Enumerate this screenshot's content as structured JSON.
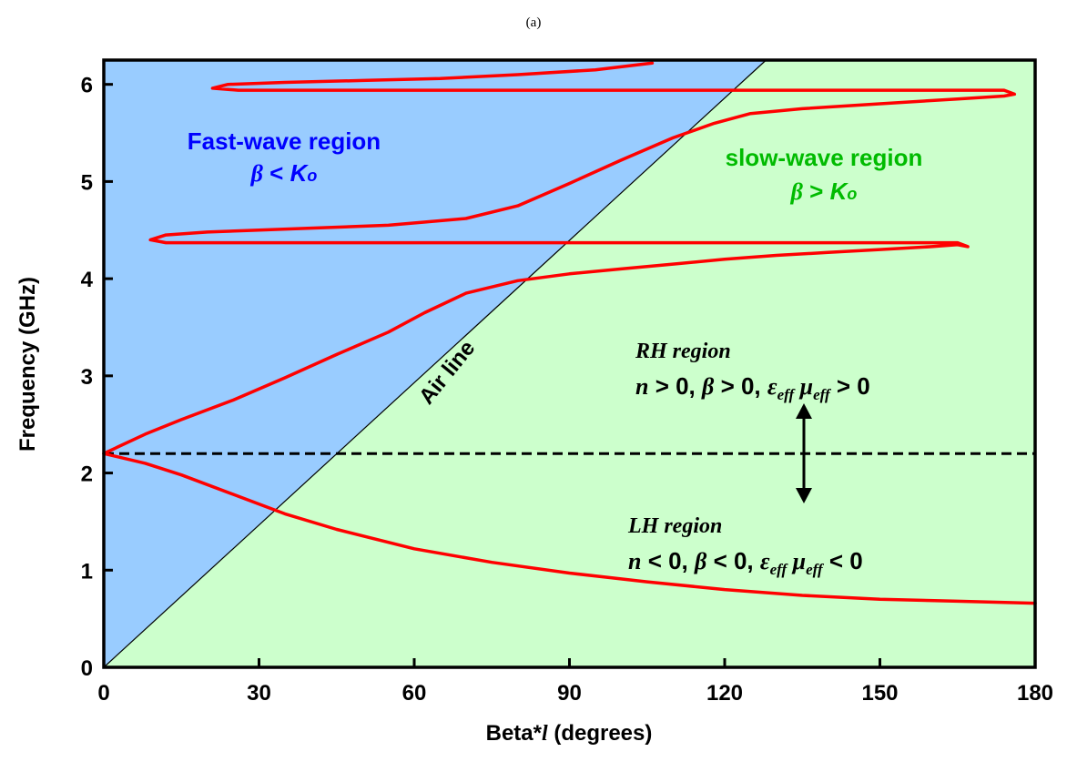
{
  "chart_data": {
    "type": "line",
    "panel_label": "(a)",
    "xlabel": {
      "main": "Beta*",
      "var": "l",
      "unit": "  (degrees)"
    },
    "ylabel": "Frequency  (GHz)",
    "xlim": [
      0,
      180
    ],
    "ylim": [
      0,
      6.25
    ],
    "xticks": [
      0,
      30,
      60,
      90,
      120,
      150,
      180
    ],
    "yticks": [
      0,
      1,
      2,
      3,
      4,
      5,
      6
    ],
    "grid": false,
    "colors": {
      "fast_region": "#99ccff",
      "slow_region": "#ccffcc",
      "dispersion": "#ff0000",
      "fast_text": "#0000ff",
      "slow_text": "#00bb00"
    },
    "regions": {
      "fast": {
        "title": "Fast-wave region",
        "cond_beta": "β",
        "cond_op": " < ",
        "cond_k": "K",
        "cond_sub": "o"
      },
      "slow": {
        "title": "slow-wave region",
        "cond_beta": "β",
        "cond_op": " > ",
        "cond_k": "K",
        "cond_sub": "o"
      }
    },
    "air_line": {
      "label": "Air line",
      "points": [
        [
          0,
          0
        ],
        [
          128,
          6.25
        ]
      ]
    },
    "transition_frequency": {
      "value": 2.2,
      "style": "dashed"
    },
    "annotations": {
      "rh": {
        "title": "RH region",
        "n": "n",
        "c1": " > 0, ",
        "beta": "β",
        "c2": " > 0, ",
        "eps": "ε",
        "eff1": "eff",
        "mu": " μ",
        "eff2": "eff",
        "c3": " > 0"
      },
      "lh": {
        "title": "LH region",
        "n": "n",
        "c1": " < 0, ",
        "beta": "β",
        "c2": " < 0, ",
        "eps": "ε",
        "eff1": "eff",
        "mu": " μ",
        "eff2": "eff",
        "c3": " < 0"
      }
    },
    "series": [
      {
        "points": [
          [
            0,
            2.2
          ],
          [
            8,
            2.1
          ],
          [
            15,
            1.98
          ],
          [
            25,
            1.78
          ],
          [
            35,
            1.58
          ],
          [
            45,
            1.42
          ],
          [
            60,
            1.22
          ],
          [
            75,
            1.08
          ],
          [
            90,
            0.97
          ],
          [
            105,
            0.88
          ],
          [
            120,
            0.8
          ],
          [
            135,
            0.74
          ],
          [
            150,
            0.7
          ],
          [
            165,
            0.68
          ],
          [
            180,
            0.66
          ]
        ]
      },
      {
        "points": [
          [
            0,
            2.2
          ],
          [
            8,
            2.4
          ],
          [
            15,
            2.55
          ],
          [
            25,
            2.75
          ],
          [
            35,
            2.98
          ],
          [
            45,
            3.22
          ],
          [
            55,
            3.45
          ],
          [
            62,
            3.65
          ],
          [
            70,
            3.85
          ],
          [
            80,
            3.98
          ],
          [
            90,
            4.05
          ],
          [
            100,
            4.1
          ],
          [
            110,
            4.15
          ],
          [
            120,
            4.2
          ],
          [
            130,
            4.24
          ],
          [
            140,
            4.27
          ],
          [
            150,
            4.3
          ],
          [
            160,
            4.33
          ],
          [
            165,
            4.35
          ],
          [
            167,
            4.33
          ],
          [
            165,
            4.37
          ],
          [
            140,
            4.37
          ],
          [
            110,
            4.37
          ],
          [
            80,
            4.37
          ],
          [
            50,
            4.37
          ],
          [
            20,
            4.37
          ],
          [
            12,
            4.37
          ],
          [
            9,
            4.4
          ],
          [
            12,
            4.45
          ],
          [
            20,
            4.48
          ],
          [
            30,
            4.5
          ],
          [
            40,
            4.52
          ],
          [
            55,
            4.55
          ],
          [
            70,
            4.62
          ],
          [
            80,
            4.75
          ],
          [
            90,
            4.98
          ],
          [
            100,
            5.22
          ],
          [
            110,
            5.45
          ],
          [
            118,
            5.6
          ],
          [
            125,
            5.7
          ],
          [
            135,
            5.75
          ],
          [
            150,
            5.8
          ],
          [
            165,
            5.85
          ],
          [
            174,
            5.88
          ],
          [
            176,
            5.9
          ],
          [
            174,
            5.94
          ],
          [
            160,
            5.94
          ],
          [
            140,
            5.94
          ],
          [
            120,
            5.94
          ],
          [
            100,
            5.94
          ],
          [
            80,
            5.94
          ],
          [
            60,
            5.94
          ],
          [
            40,
            5.94
          ],
          [
            26,
            5.94
          ],
          [
            21,
            5.96
          ],
          [
            24,
            6.0
          ],
          [
            35,
            6.02
          ],
          [
            50,
            6.04
          ],
          [
            65,
            6.06
          ],
          [
            80,
            6.1
          ],
          [
            95,
            6.15
          ],
          [
            106,
            6.22
          ]
        ]
      }
    ]
  }
}
